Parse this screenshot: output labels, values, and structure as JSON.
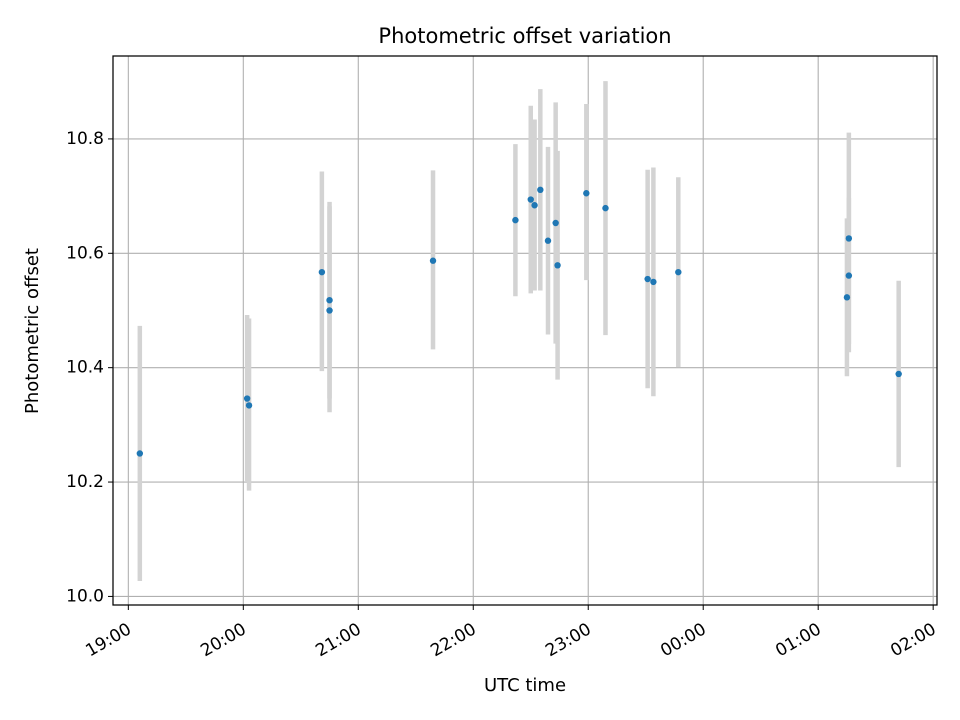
{
  "chart_data": {
    "type": "scatter",
    "title": "Photometric offset variation",
    "xlabel": "UTC time",
    "ylabel": "Photometric offset",
    "x_axis_kind": "time",
    "x_start_time": "18:52",
    "x_end_time": "02:02",
    "ylim": [
      9.985,
      10.945
    ],
    "x_ticks": [
      "19:00",
      "20:00",
      "21:00",
      "22:00",
      "23:00",
      "00:00",
      "01:00",
      "02:00"
    ],
    "y_ticks": [
      10.0,
      10.2,
      10.4,
      10.6,
      10.8
    ],
    "y_tick_labels": [
      "10.0",
      "10.2",
      "10.4",
      "10.6",
      "10.8"
    ],
    "grid": true,
    "point_color": "#1f77b4",
    "errorbar_color": "#d3d3d3",
    "points": [
      {
        "time": "19:06",
        "y": 10.25,
        "ylow": 10.027,
        "yhigh": 10.473
      },
      {
        "time": "20:02",
        "y": 10.346,
        "ylow": 10.2,
        "yhigh": 10.492
      },
      {
        "time": "20:03",
        "y": 10.334,
        "ylow": 10.185,
        "yhigh": 10.486
      },
      {
        "time": "20:41",
        "y": 10.567,
        "ylow": 10.394,
        "yhigh": 10.743
      },
      {
        "time": "20:45",
        "y": 10.518,
        "ylow": 10.346,
        "yhigh": 10.69
      },
      {
        "time": "20:45",
        "y": 10.5,
        "ylow": 10.322,
        "yhigh": 10.682
      },
      {
        "time": "21:39",
        "y": 10.587,
        "ylow": 10.432,
        "yhigh": 10.745
      },
      {
        "time": "22:22",
        "y": 10.658,
        "ylow": 10.525,
        "yhigh": 10.791
      },
      {
        "time": "22:30",
        "y": 10.694,
        "ylow": 10.53,
        "yhigh": 10.858
      },
      {
        "time": "22:32",
        "y": 10.684,
        "ylow": 10.535,
        "yhigh": 10.834
      },
      {
        "time": "22:35",
        "y": 10.711,
        "ylow": 10.535,
        "yhigh": 10.887
      },
      {
        "time": "22:39",
        "y": 10.622,
        "ylow": 10.458,
        "yhigh": 10.786
      },
      {
        "time": "22:43",
        "y": 10.653,
        "ylow": 10.442,
        "yhigh": 10.864
      },
      {
        "time": "22:44",
        "y": 10.579,
        "ylow": 10.379,
        "yhigh": 10.779
      },
      {
        "time": "22:59",
        "y": 10.705,
        "ylow": 10.553,
        "yhigh": 10.861
      },
      {
        "time": "23:09",
        "y": 10.679,
        "ylow": 10.457,
        "yhigh": 10.901
      },
      {
        "time": "23:31",
        "y": 10.555,
        "ylow": 10.364,
        "yhigh": 10.746
      },
      {
        "time": "23:34",
        "y": 10.55,
        "ylow": 10.35,
        "yhigh": 10.75
      },
      {
        "time": "23:47",
        "y": 10.567,
        "ylow": 10.401,
        "yhigh": 10.733
      },
      {
        "time": "01:15",
        "y": 10.523,
        "ylow": 10.385,
        "yhigh": 10.661
      },
      {
        "time": "01:16",
        "y": 10.626,
        "ylow": 10.441,
        "yhigh": 10.811
      },
      {
        "time": "01:16",
        "y": 10.561,
        "ylow": 10.427,
        "yhigh": 10.697
      },
      {
        "time": "01:42",
        "y": 10.389,
        "ylow": 10.226,
        "yhigh": 10.552
      }
    ]
  }
}
